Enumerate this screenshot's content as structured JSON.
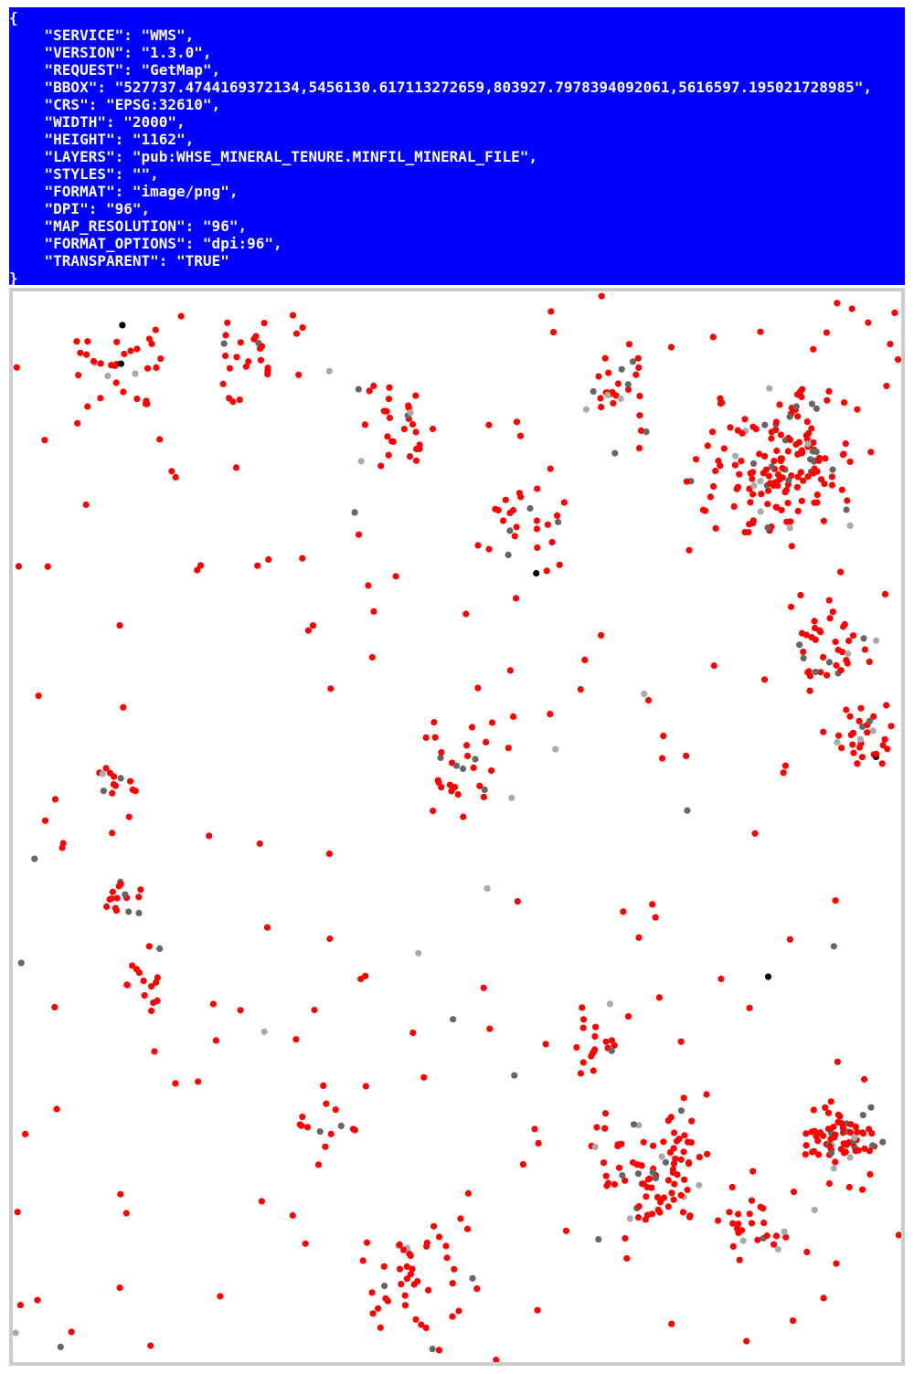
{
  "request": {
    "lines": [
      "{",
      "    \"SERVICE\": \"WMS\",",
      "    \"VERSION\": \"1.3.0\",",
      "    \"REQUEST\": \"GetMap\",",
      "    \"BBOX\": \"527737.4744169372134,5456130.617113272659,803927.7978394092061,5616597.195021728985\",",
      "    \"CRS\": \"EPSG:32610\",",
      "    \"WIDTH\": \"2000\",",
      "    \"HEIGHT\": \"1162\",",
      "    \"LAYERS\": \"pub:WHSE_MINERAL_TENURE.MINFIL_MINERAL_FILE\",",
      "    \"STYLES\": \"\",",
      "    \"FORMAT\": \"image/png\",",
      "    \"DPI\": \"96\",",
      "    \"MAP_RESOLUTION\": \"96\",",
      "    \"FORMAT_OPTIONS\": \"dpi:96\",",
      "    \"TRANSPARENT\": \"TRUE\"",
      "}"
    ]
  }
}
